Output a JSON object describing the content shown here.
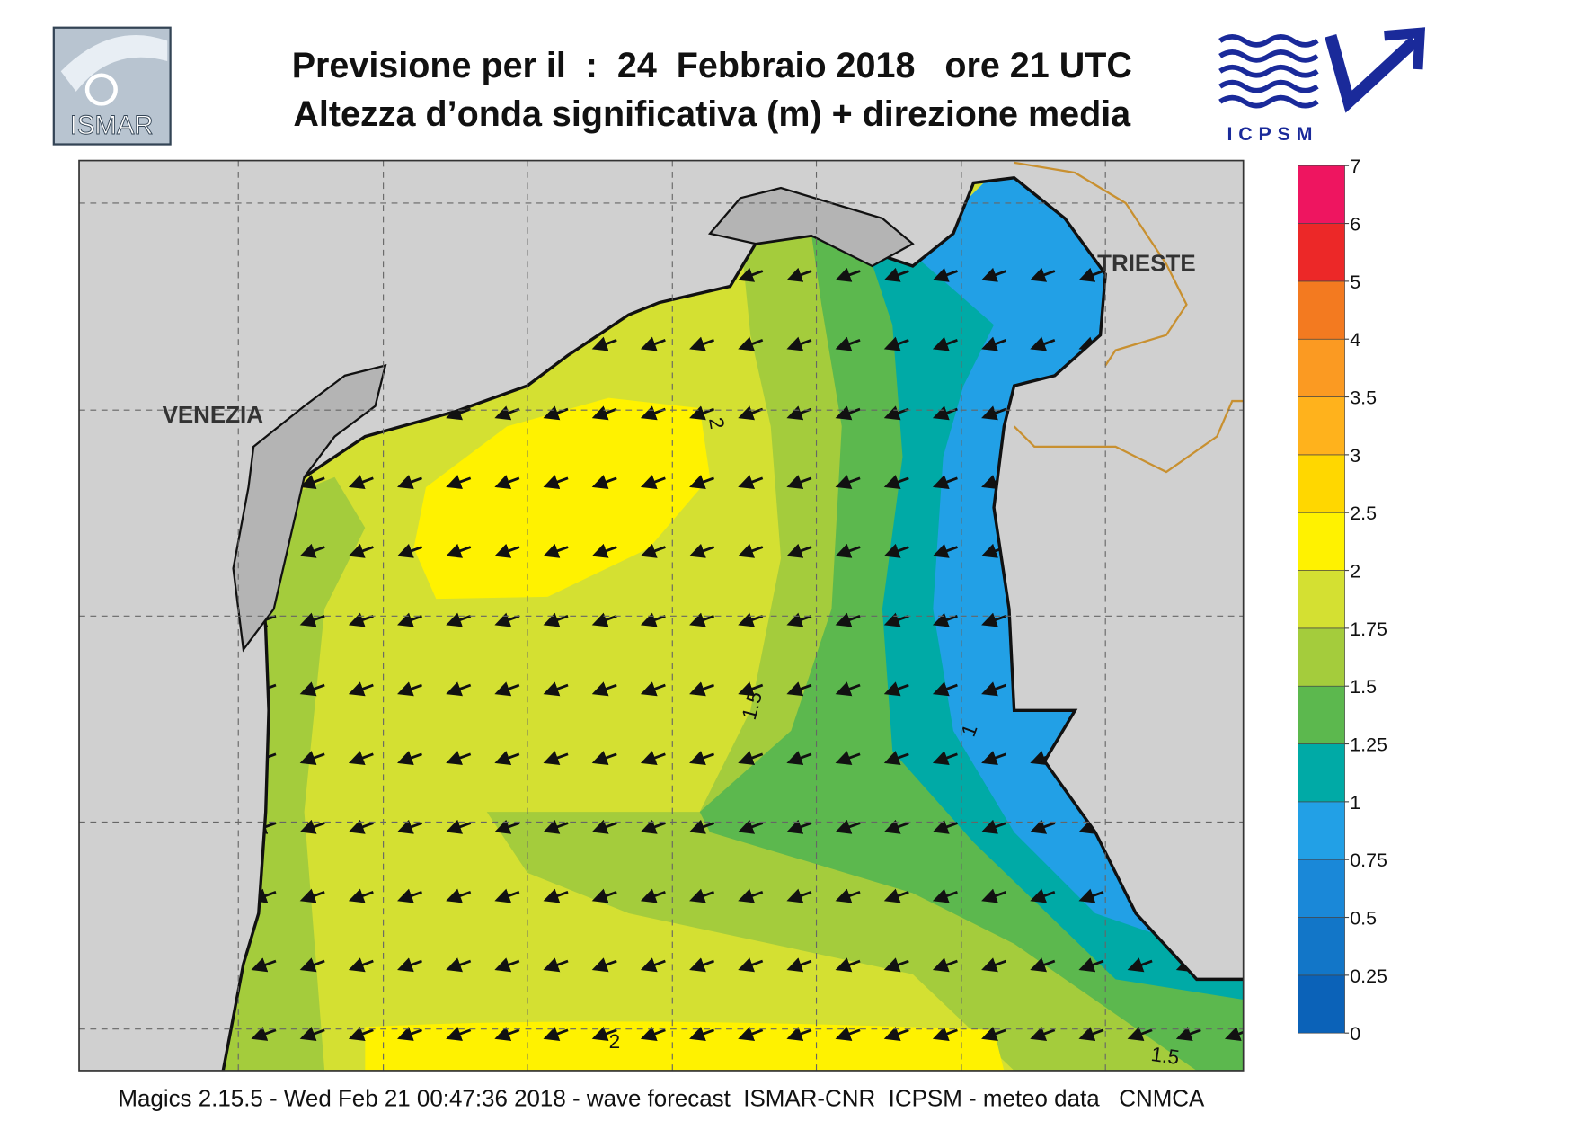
{
  "header": {
    "title_line1": "Previsione per il  :  24  Febbraio 2018   ore 21 UTC",
    "title_line2": "Altezza d’onda significativa (m) + direzione media",
    "logo_left": "ISMAR",
    "logo_right": "ICPSM"
  },
  "map": {
    "places": [
      "VENEZIA",
      "TRIESTE"
    ],
    "contour_labels": [
      "2",
      "1.5",
      "1",
      "2",
      "1.5"
    ]
  },
  "colorbar": {
    "levels": [
      0,
      0.25,
      0.5,
      0.75,
      1,
      1.25,
      1.5,
      1.75,
      2,
      2.5,
      3,
      3.5,
      4,
      5,
      6,
      7
    ],
    "colors": [
      "#0b62b8",
      "#1276c8",
      "#1a88d8",
      "#22a0e6",
      "#00aaa6",
      "#5cb84e",
      "#a4cc3c",
      "#d4e032",
      "#fff200",
      "#ffd700",
      "#ffb21c",
      "#fb9a22",
      "#f37a20",
      "#ec2828",
      "#ee1560"
    ]
  },
  "footer": "Magics 2.15.5 - Wed Feb 21 00:47:36 2018 - wave forecast  ISMAR-CNR  ICPSM - meteo data   CNMCA"
}
